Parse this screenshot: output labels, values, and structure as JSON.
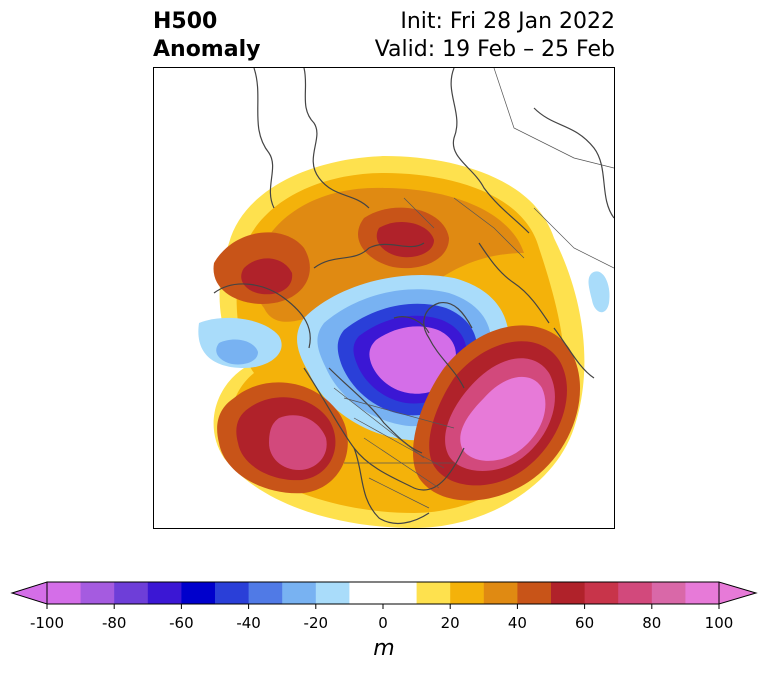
{
  "header": {
    "title_line1": "H500",
    "title_line2": "Anomaly",
    "init_text": "Init: Fri 28 Jan 2022",
    "valid_text": "Valid: 19 Feb – 25 Feb"
  },
  "map": {
    "projection": "polar-stereographic-north",
    "field": "500 hPa geopotential height anomaly"
  },
  "colorbar": {
    "unit": "m",
    "extend": "both",
    "ticks": [
      "-100",
      "-80",
      "-60",
      "-40",
      "-20",
      "0",
      "20",
      "40",
      "60",
      "80",
      "100"
    ],
    "colors": [
      "#d46ee8",
      "#a55be0",
      "#6e3ed8",
      "#3b17d4",
      "#0000cc",
      "#2a3fd8",
      "#507ae6",
      "#78b2f2",
      "#a9dcfa",
      "#ffffff",
      "#ffffff",
      "#fee14e",
      "#f4b20a",
      "#e08a12",
      "#c85418",
      "#b0222a",
      "#c8344a",
      "#d2497c",
      "#d968a8",
      "#e77ad8"
    ],
    "under_color": "#d46ee8",
    "over_color": "#e77ad8"
  }
}
